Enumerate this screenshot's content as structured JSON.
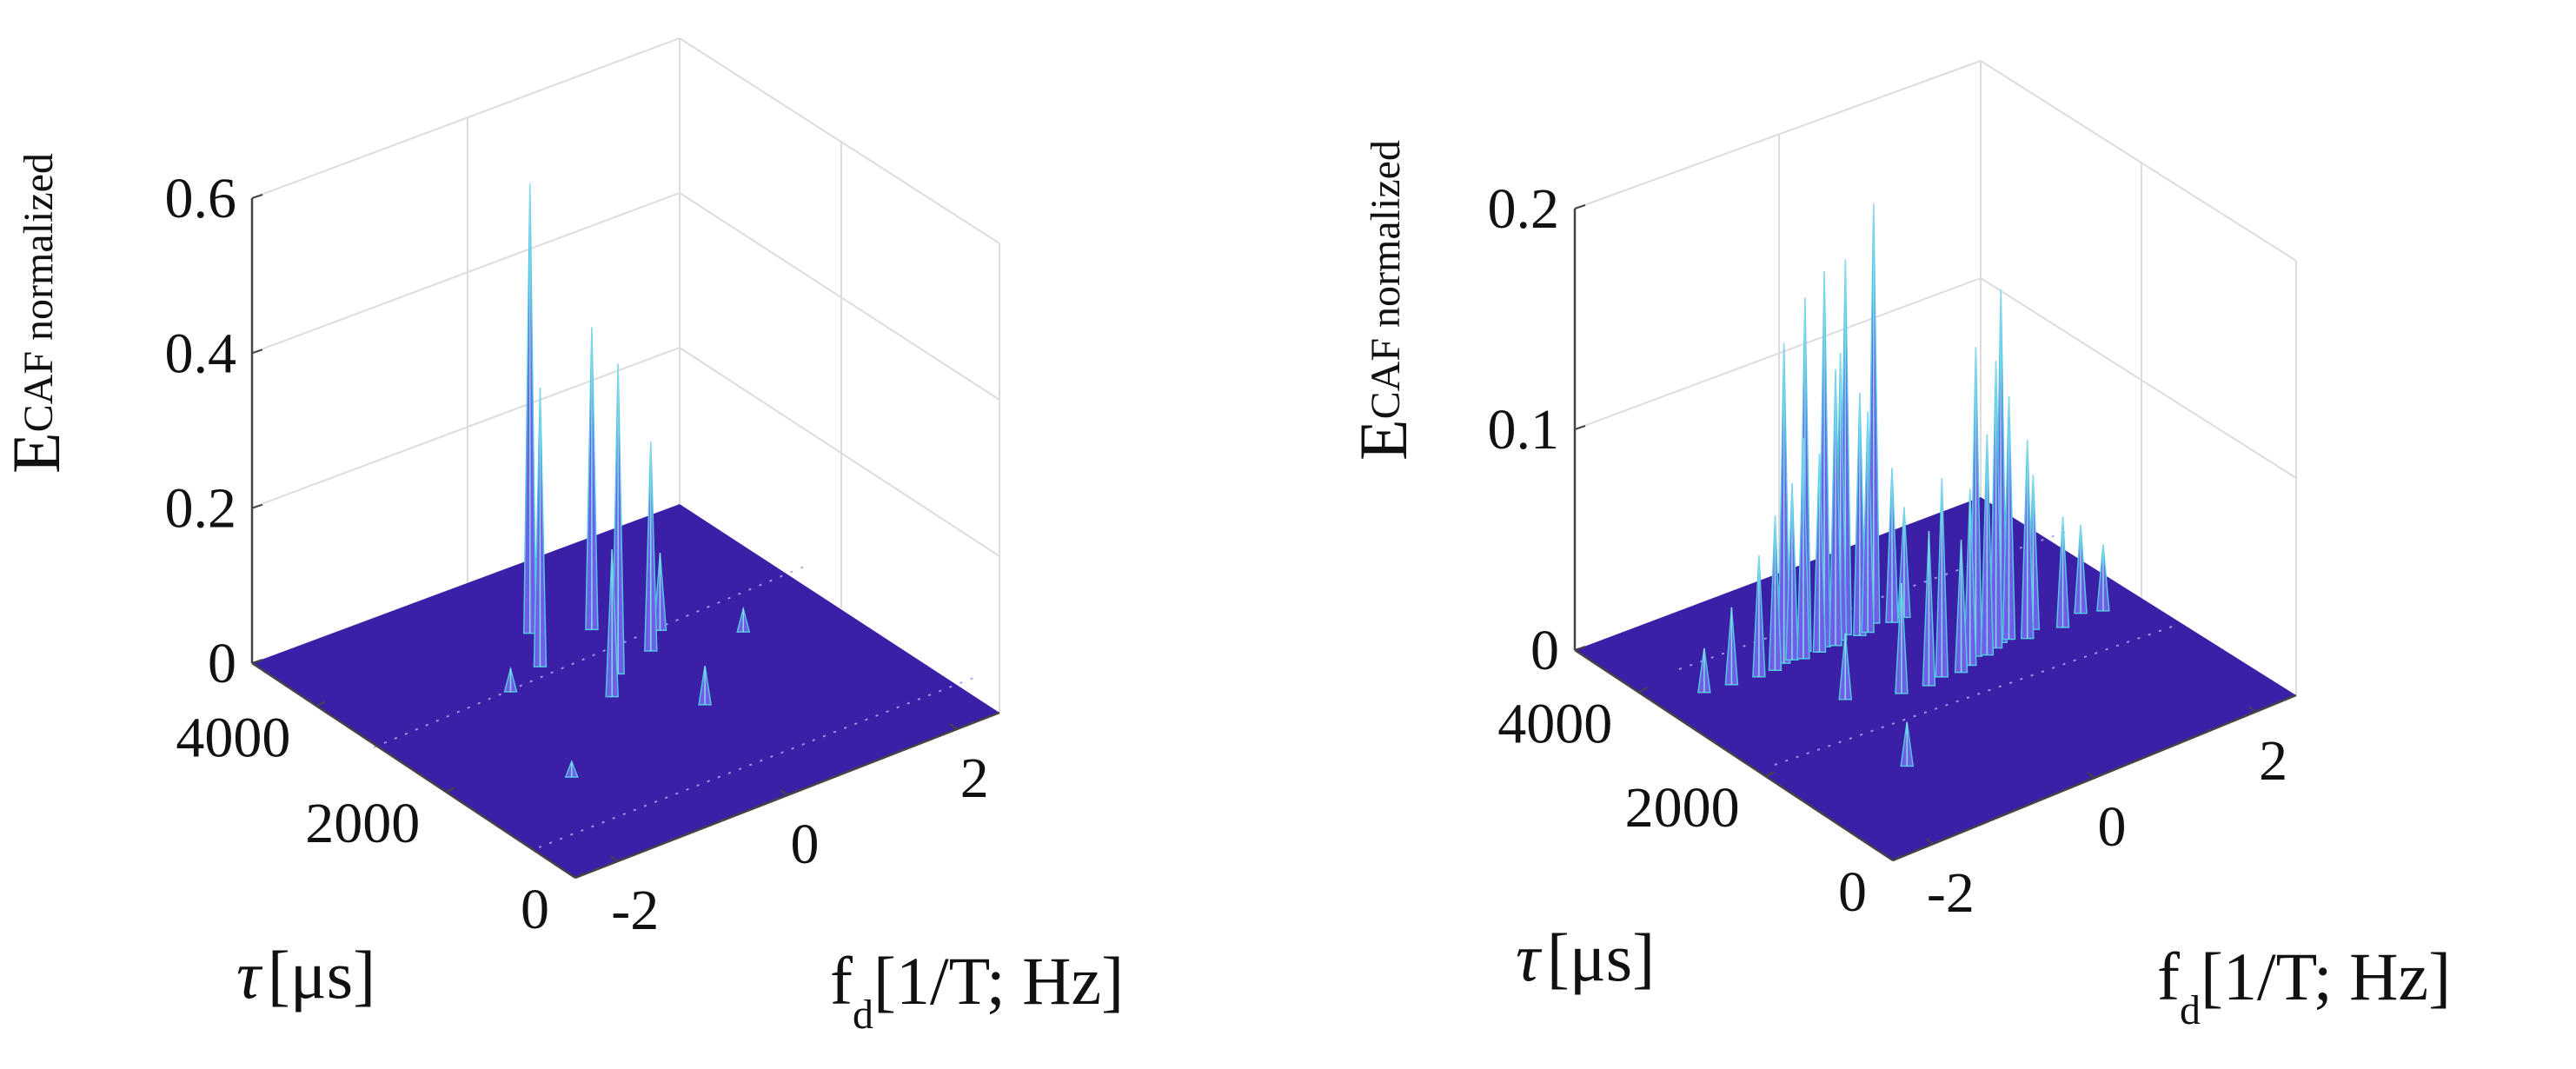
{
  "chart_data": [
    {
      "type": "surface3d",
      "title": "",
      "zlabel": "E",
      "zlabel_sub": "CAF normalized",
      "xlabel": "f",
      "xlabel_sub": "d",
      "xlabel_rest": "[1/T; Hz]",
      "ylabel_sym": "τ",
      "ylabel_rest": "[μs]",
      "x_ticks": [
        "-2",
        "0",
        "2"
      ],
      "x_tick_values": [
        -2,
        0,
        2
      ],
      "y_ticks": [
        "0",
        "2000",
        "4000"
      ],
      "y_tick_values": [
        0,
        2000,
        4000
      ],
      "z_ticks": [
        "0",
        "0.2",
        "0.4",
        "0.6"
      ],
      "z_tick_values": [
        0,
        0.2,
        0.4,
        0.6
      ],
      "xlim": [
        -2.5,
        2.5
      ],
      "ylim": [
        0,
        5000
      ],
      "zlim": [
        0,
        0.6
      ],
      "peaks": [
        {
          "x": -0.4,
          "y": 3300,
          "z": 0.36
        },
        {
          "x": -0.1,
          "y": 3850,
          "z": 0.58
        },
        {
          "x": 0.4,
          "y": 3550,
          "z": 0.39
        },
        {
          "x": -0.2,
          "y": 2450,
          "z": 0.19
        },
        {
          "x": 0.1,
          "y": 2750,
          "z": 0.4
        },
        {
          "x": 0.6,
          "y": 2900,
          "z": 0.27
        },
        {
          "x": 0.9,
          "y": 3150,
          "z": 0.1
        },
        {
          "x": -0.9,
          "y": 3100,
          "z": 0.03
        },
        {
          "x": 1.5,
          "y": 2650,
          "z": 0.03
        },
        {
          "x": -1.4,
          "y": 1500,
          "z": 0.02
        },
        {
          "x": 0.4,
          "y": 1800,
          "z": 0.05
        }
      ]
    },
    {
      "type": "surface3d",
      "title": "",
      "zlabel": "E",
      "zlabel_sub": "CAF normalized",
      "xlabel": "f",
      "xlabel_sub": "d",
      "xlabel_rest": "[1/T; Hz]",
      "ylabel_sym": "τ",
      "ylabel_rest": "[μs]",
      "x_ticks": [
        "-2",
        "0",
        "2"
      ],
      "x_tick_values": [
        -2,
        0,
        2
      ],
      "y_ticks": [
        "0",
        "2000",
        "4000"
      ],
      "y_tick_values": [
        0,
        2000,
        4000
      ],
      "z_ticks": [
        "0",
        "0.1",
        "0.2"
      ],
      "z_tick_values": [
        0,
        0.1,
        0.2
      ],
      "xlim": [
        -2.5,
        2.5
      ],
      "ylim": [
        0,
        5000
      ],
      "zlim": [
        0,
        0.2
      ],
      "peaks": [
        {
          "x": -2.0,
          "y": 3600,
          "z": 0.02
        },
        {
          "x": -1.7,
          "y": 3550,
          "z": 0.035
        },
        {
          "x": -1.4,
          "y": 3500,
          "z": 0.055
        },
        {
          "x": -1.2,
          "y": 3500,
          "z": 0.07
        },
        {
          "x": -1.05,
          "y": 3550,
          "z": 0.145
        },
        {
          "x": -0.95,
          "y": 3550,
          "z": 0.08
        },
        {
          "x": -0.85,
          "y": 3500,
          "z": 0.1
        },
        {
          "x": -0.75,
          "y": 3600,
          "z": 0.16
        },
        {
          "x": -0.65,
          "y": 3500,
          "z": 0.09
        },
        {
          "x": -0.55,
          "y": 3550,
          "z": 0.17
        },
        {
          "x": -0.45,
          "y": 3500,
          "z": 0.125
        },
        {
          "x": -0.35,
          "y": 3550,
          "z": 0.13
        },
        {
          "x": -0.25,
          "y": 3600,
          "z": 0.17
        },
        {
          "x": -0.15,
          "y": 3500,
          "z": 0.11
        },
        {
          "x": -0.05,
          "y": 3500,
          "z": 0.1
        },
        {
          "x": 0.1,
          "y": 3600,
          "z": 0.19
        },
        {
          "x": 0.25,
          "y": 3500,
          "z": 0.07
        },
        {
          "x": 0.4,
          "y": 3500,
          "z": 0.05
        },
        {
          "x": -1.0,
          "y": 2650,
          "z": 0.03
        },
        {
          "x": -0.5,
          "y": 2400,
          "z": 0.05
        },
        {
          "x": -0.2,
          "y": 2350,
          "z": 0.07
        },
        {
          "x": 0.0,
          "y": 2400,
          "z": 0.09
        },
        {
          "x": 0.2,
          "y": 2350,
          "z": 0.06
        },
        {
          "x": 0.35,
          "y": 2400,
          "z": 0.08
        },
        {
          "x": 0.5,
          "y": 2500,
          "z": 0.14
        },
        {
          "x": 0.6,
          "y": 2450,
          "z": 0.1
        },
        {
          "x": 0.75,
          "y": 2500,
          "z": 0.13
        },
        {
          "x": 0.85,
          "y": 2550,
          "z": 0.16
        },
        {
          "x": 0.95,
          "y": 2550,
          "z": 0.11
        },
        {
          "x": 1.1,
          "y": 2450,
          "z": 0.09
        },
        {
          "x": 1.25,
          "y": 2550,
          "z": 0.07
        },
        {
          "x": 1.5,
          "y": 2400,
          "z": 0.05
        },
        {
          "x": 1.8,
          "y": 2500,
          "z": 0.04
        },
        {
          "x": 2.0,
          "y": 2400,
          "z": 0.03
        },
        {
          "x": -1.3,
          "y": 1300,
          "z": 0.02
        }
      ]
    }
  ]
}
